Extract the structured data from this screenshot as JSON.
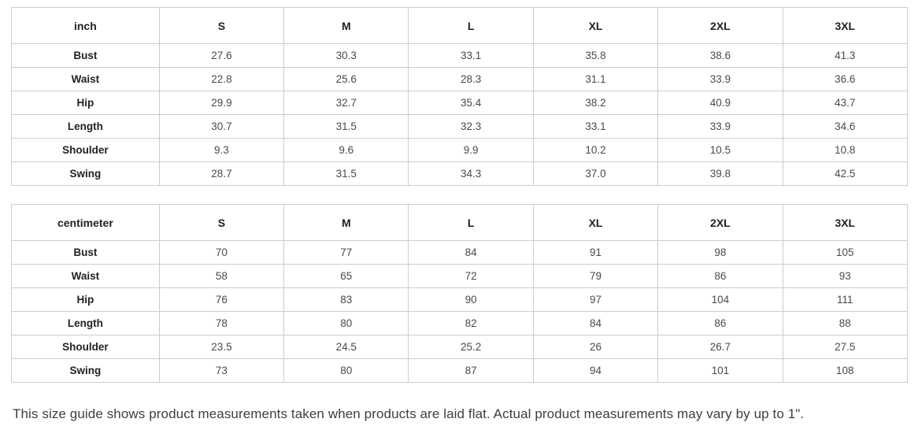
{
  "colors": {
    "table_border": "#cccccc",
    "header_text": "#222222",
    "value_text": "#4a4a4a",
    "footer_text": "#3a3f44",
    "background": "#ffffff"
  },
  "tables": [
    {
      "unit_label": "inch",
      "columns": [
        "S",
        "M",
        "L",
        "XL",
        "2XL",
        "3XL"
      ],
      "rows": [
        {
          "label": "Bust",
          "values": [
            "27.6",
            "30.3",
            "33.1",
            "35.8",
            "38.6",
            "41.3"
          ]
        },
        {
          "label": "Waist",
          "values": [
            "22.8",
            "25.6",
            "28.3",
            "31.1",
            "33.9",
            "36.6"
          ]
        },
        {
          "label": "Hip",
          "values": [
            "29.9",
            "32.7",
            "35.4",
            "38.2",
            "40.9",
            "43.7"
          ]
        },
        {
          "label": "Length",
          "values": [
            "30.7",
            "31.5",
            "32.3",
            "33.1",
            "33.9",
            "34.6"
          ]
        },
        {
          "label": "Shoulder",
          "values": [
            "9.3",
            "9.6",
            "9.9",
            "10.2",
            "10.5",
            "10.8"
          ]
        },
        {
          "label": "Swing",
          "values": [
            "28.7",
            "31.5",
            "34.3",
            "37.0",
            "39.8",
            "42.5"
          ]
        }
      ]
    },
    {
      "unit_label": "centimeter",
      "columns": [
        "S",
        "M",
        "L",
        "XL",
        "2XL",
        "3XL"
      ],
      "rows": [
        {
          "label": "Bust",
          "values": [
            "70",
            "77",
            "84",
            "91",
            "98",
            "105"
          ]
        },
        {
          "label": "Waist",
          "values": [
            "58",
            "65",
            "72",
            "79",
            "86",
            "93"
          ]
        },
        {
          "label": "Hip",
          "values": [
            "76",
            "83",
            "90",
            "97",
            "104",
            "111"
          ]
        },
        {
          "label": "Length",
          "values": [
            "78",
            "80",
            "82",
            "84",
            "86",
            "88"
          ]
        },
        {
          "label": "Shoulder",
          "values": [
            "23.5",
            "24.5",
            "25.2",
            "26",
            "26.7",
            "27.5"
          ]
        },
        {
          "label": "Swing",
          "values": [
            "73",
            "80",
            "87",
            "94",
            "101",
            "108"
          ]
        }
      ]
    }
  ],
  "footer": {
    "note": "This size guide shows product measurements taken when products are laid flat. Actual product measurements may vary by up to 1\"."
  }
}
